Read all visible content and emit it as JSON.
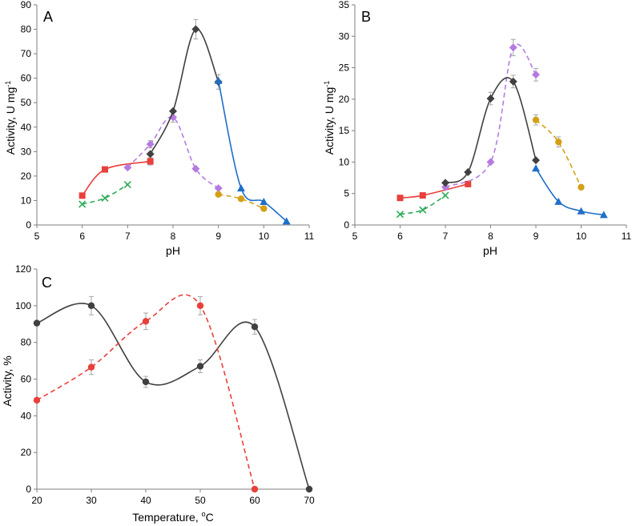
{
  "chart_data": [
    {
      "id": "A",
      "type": "line",
      "panel_label": "A",
      "xlabel": "pH",
      "ylabel_main": "Activity, U mg",
      "ylabel_sup": "-1",
      "xlim": [
        5,
        11
      ],
      "ylim": [
        0,
        90
      ],
      "xticks": [
        "5",
        "6",
        "7",
        "8",
        "9",
        "10",
        "11"
      ],
      "yticks": [
        "0",
        "10",
        "20",
        "30",
        "40",
        "50",
        "60",
        "70",
        "80",
        "90"
      ],
      "series": [
        {
          "name": "red-square",
          "color": "#e8403b",
          "marker": "square",
          "dashed": false,
          "x": [
            6,
            6.5,
            7.5
          ],
          "y": [
            12,
            22.7,
            26
          ],
          "err": [
            0,
            0,
            1.5
          ]
        },
        {
          "name": "green-cross",
          "color": "#2eaa58",
          "marker": "cross",
          "dashed": true,
          "x": [
            6,
            6.5,
            7
          ],
          "y": [
            8.5,
            11,
            16.5
          ],
          "err": [
            0,
            0,
            0
          ]
        },
        {
          "name": "purple-diamond",
          "color": "#b57be0",
          "marker": "diamond",
          "dashed": true,
          "x": [
            7,
            7.5,
            8,
            8.5,
            9
          ],
          "y": [
            23.5,
            33,
            44,
            23,
            15
          ],
          "err": [
            0,
            1.5,
            2,
            0,
            0
          ]
        },
        {
          "name": "dark-diamond",
          "color": "#404040",
          "marker": "diamond",
          "dashed": false,
          "x": [
            7.5,
            8,
            8.5,
            9
          ],
          "y": [
            29,
            46.5,
            80,
            58.5
          ],
          "err": [
            0,
            0,
            4,
            3
          ]
        },
        {
          "name": "blue-triangle",
          "color": "#1f6fc9",
          "marker": "triangle",
          "dashed": false,
          "x": [
            9,
            9.5,
            10,
            10.5
          ],
          "y": [
            59,
            15,
            9.5,
            1.5
          ],
          "err": [
            0,
            0,
            0,
            0
          ]
        },
        {
          "name": "gold-circle",
          "color": "#d4a017",
          "marker": "circle",
          "dashed": true,
          "x": [
            9,
            9.5,
            10
          ],
          "y": [
            12.5,
            10.7,
            6.7
          ],
          "err": [
            0,
            0,
            0
          ]
        }
      ]
    },
    {
      "id": "B",
      "type": "line",
      "panel_label": "B",
      "xlabel": "pH",
      "ylabel_main": "Activity, U mg",
      "ylabel_sup": "-1",
      "xlim": [
        5,
        11
      ],
      "ylim": [
        0,
        35
      ],
      "xticks": [
        "5",
        "6",
        "7",
        "8",
        "9",
        "10",
        "11"
      ],
      "yticks": [
        "0",
        "5",
        "10",
        "15",
        "20",
        "25",
        "30",
        "35"
      ],
      "series": [
        {
          "name": "red-square",
          "color": "#e8403b",
          "marker": "square",
          "dashed": false,
          "x": [
            6,
            6.5,
            7.5
          ],
          "y": [
            4.3,
            4.7,
            6.5
          ],
          "err": [
            0,
            0,
            0
          ]
        },
        {
          "name": "green-cross",
          "color": "#2eaa58",
          "marker": "cross",
          "dashed": true,
          "x": [
            6,
            6.5,
            7
          ],
          "y": [
            1.7,
            2.4,
            4.7
          ],
          "err": [
            0,
            0,
            0
          ]
        },
        {
          "name": "purple-diamond",
          "color": "#b57be0",
          "marker": "diamond",
          "dashed": true,
          "x": [
            7,
            8,
            8.5,
            9
          ],
          "y": [
            6,
            10,
            28.2,
            23.9
          ],
          "err": [
            0,
            0,
            1.3,
            1
          ]
        },
        {
          "name": "dark-diamond",
          "color": "#404040",
          "marker": "diamond",
          "dashed": false,
          "x": [
            7,
            7.5,
            8,
            8.5,
            9
          ],
          "y": [
            6.7,
            8.4,
            20.1,
            22.8,
            10.3
          ],
          "err": [
            0,
            0,
            1,
            1,
            0
          ]
        },
        {
          "name": "blue-triangle",
          "color": "#1f6fc9",
          "marker": "triangle",
          "dashed": false,
          "x": [
            9,
            9.5,
            10,
            10.5
          ],
          "y": [
            9,
            3.7,
            2.2,
            1.6
          ],
          "err": [
            0,
            0,
            0,
            0
          ]
        },
        {
          "name": "gold-circle",
          "color": "#d4a017",
          "marker": "circle",
          "dashed": true,
          "x": [
            9,
            9.5,
            10
          ],
          "y": [
            16.7,
            13.2,
            6
          ],
          "err": [
            0.8,
            0.8,
            0
          ]
        }
      ]
    },
    {
      "id": "C",
      "type": "line",
      "panel_label": "C",
      "xlabel_main": "Temperature, ",
      "xlabel_sup": "o",
      "xlabel_tail": "C",
      "ylabel": "Activity, %",
      "xlim": [
        20,
        70
      ],
      "ylim": [
        0,
        120
      ],
      "xticks": [
        "20",
        "30",
        "40",
        "50",
        "60",
        "70"
      ],
      "yticks": [
        "0",
        "20",
        "40",
        "60",
        "80",
        "100",
        "120"
      ],
      "series": [
        {
          "name": "dark-circle",
          "color": "#404040",
          "marker": "circle",
          "dashed": false,
          "x": [
            20,
            30,
            40,
            50,
            60,
            70
          ],
          "y": [
            90.5,
            100,
            58.5,
            67,
            88.5,
            0
          ],
          "err": [
            0,
            5,
            3,
            3.5,
            4,
            0
          ]
        },
        {
          "name": "red-circle",
          "color": "#e8403b",
          "marker": "circle",
          "dashed": true,
          "x": [
            20,
            30,
            40,
            50,
            60
          ],
          "y": [
            48.5,
            66.5,
            91.5,
            100,
            0
          ],
          "err": [
            0,
            4,
            4.5,
            5,
            0
          ]
        }
      ]
    }
  ]
}
